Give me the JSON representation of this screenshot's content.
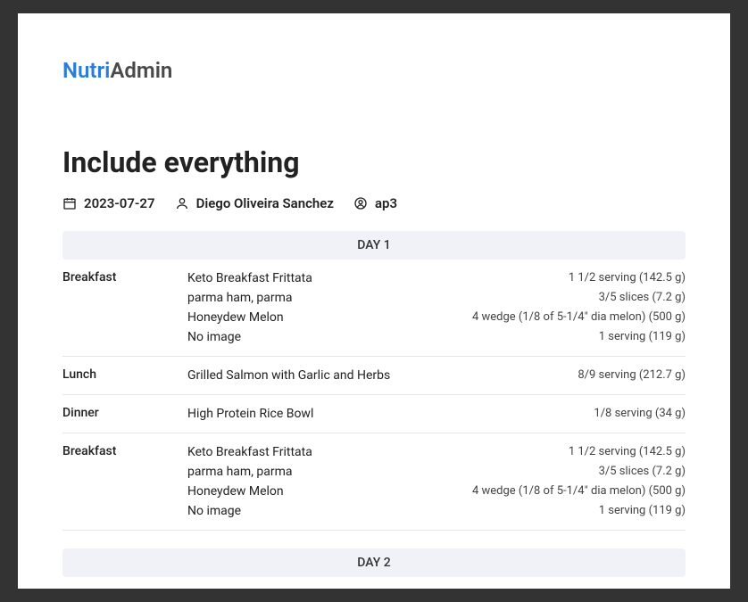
{
  "logo": {
    "primary": "Nutri",
    "secondary": "Admin"
  },
  "title": "Include everything",
  "meta": {
    "date": "2023-07-27",
    "author": "Diego Oliveira Sanchez",
    "patient": "ap3"
  },
  "days": [
    {
      "label": "DAY 1",
      "meals": [
        {
          "name": "Breakfast",
          "items": [
            {
              "food": "Keto Breakfast Frittata",
              "portion": "1 1/2 serving (142.5 g)"
            },
            {
              "food": "parma ham, parma",
              "portion": "3/5 slices (7.2 g)"
            },
            {
              "food": "Honeydew Melon",
              "portion": "4 wedge (1/8 of 5-1/4\" dia melon) (500 g)"
            },
            {
              "food": "No image",
              "portion": "1 serving (119 g)"
            }
          ]
        },
        {
          "name": "Lunch",
          "items": [
            {
              "food": "Grilled Salmon with Garlic and Herbs",
              "portion": "8/9 serving (212.7 g)"
            }
          ]
        },
        {
          "name": "Dinner",
          "items": [
            {
              "food": "High Protein Rice Bowl",
              "portion": "1/8 serving (34 g)"
            }
          ]
        },
        {
          "name": "Breakfast",
          "items": [
            {
              "food": "Keto Breakfast Frittata",
              "portion": "1 1/2 serving (142.5 g)"
            },
            {
              "food": "parma ham, parma",
              "portion": "3/5 slices (7.2 g)"
            },
            {
              "food": "Honeydew Melon",
              "portion": "4 wedge (1/8 of 5-1/4\" dia melon) (500 g)"
            },
            {
              "food": "No image",
              "portion": "1 serving (119 g)"
            }
          ]
        }
      ]
    },
    {
      "label": "DAY 2",
      "meals": []
    }
  ]
}
